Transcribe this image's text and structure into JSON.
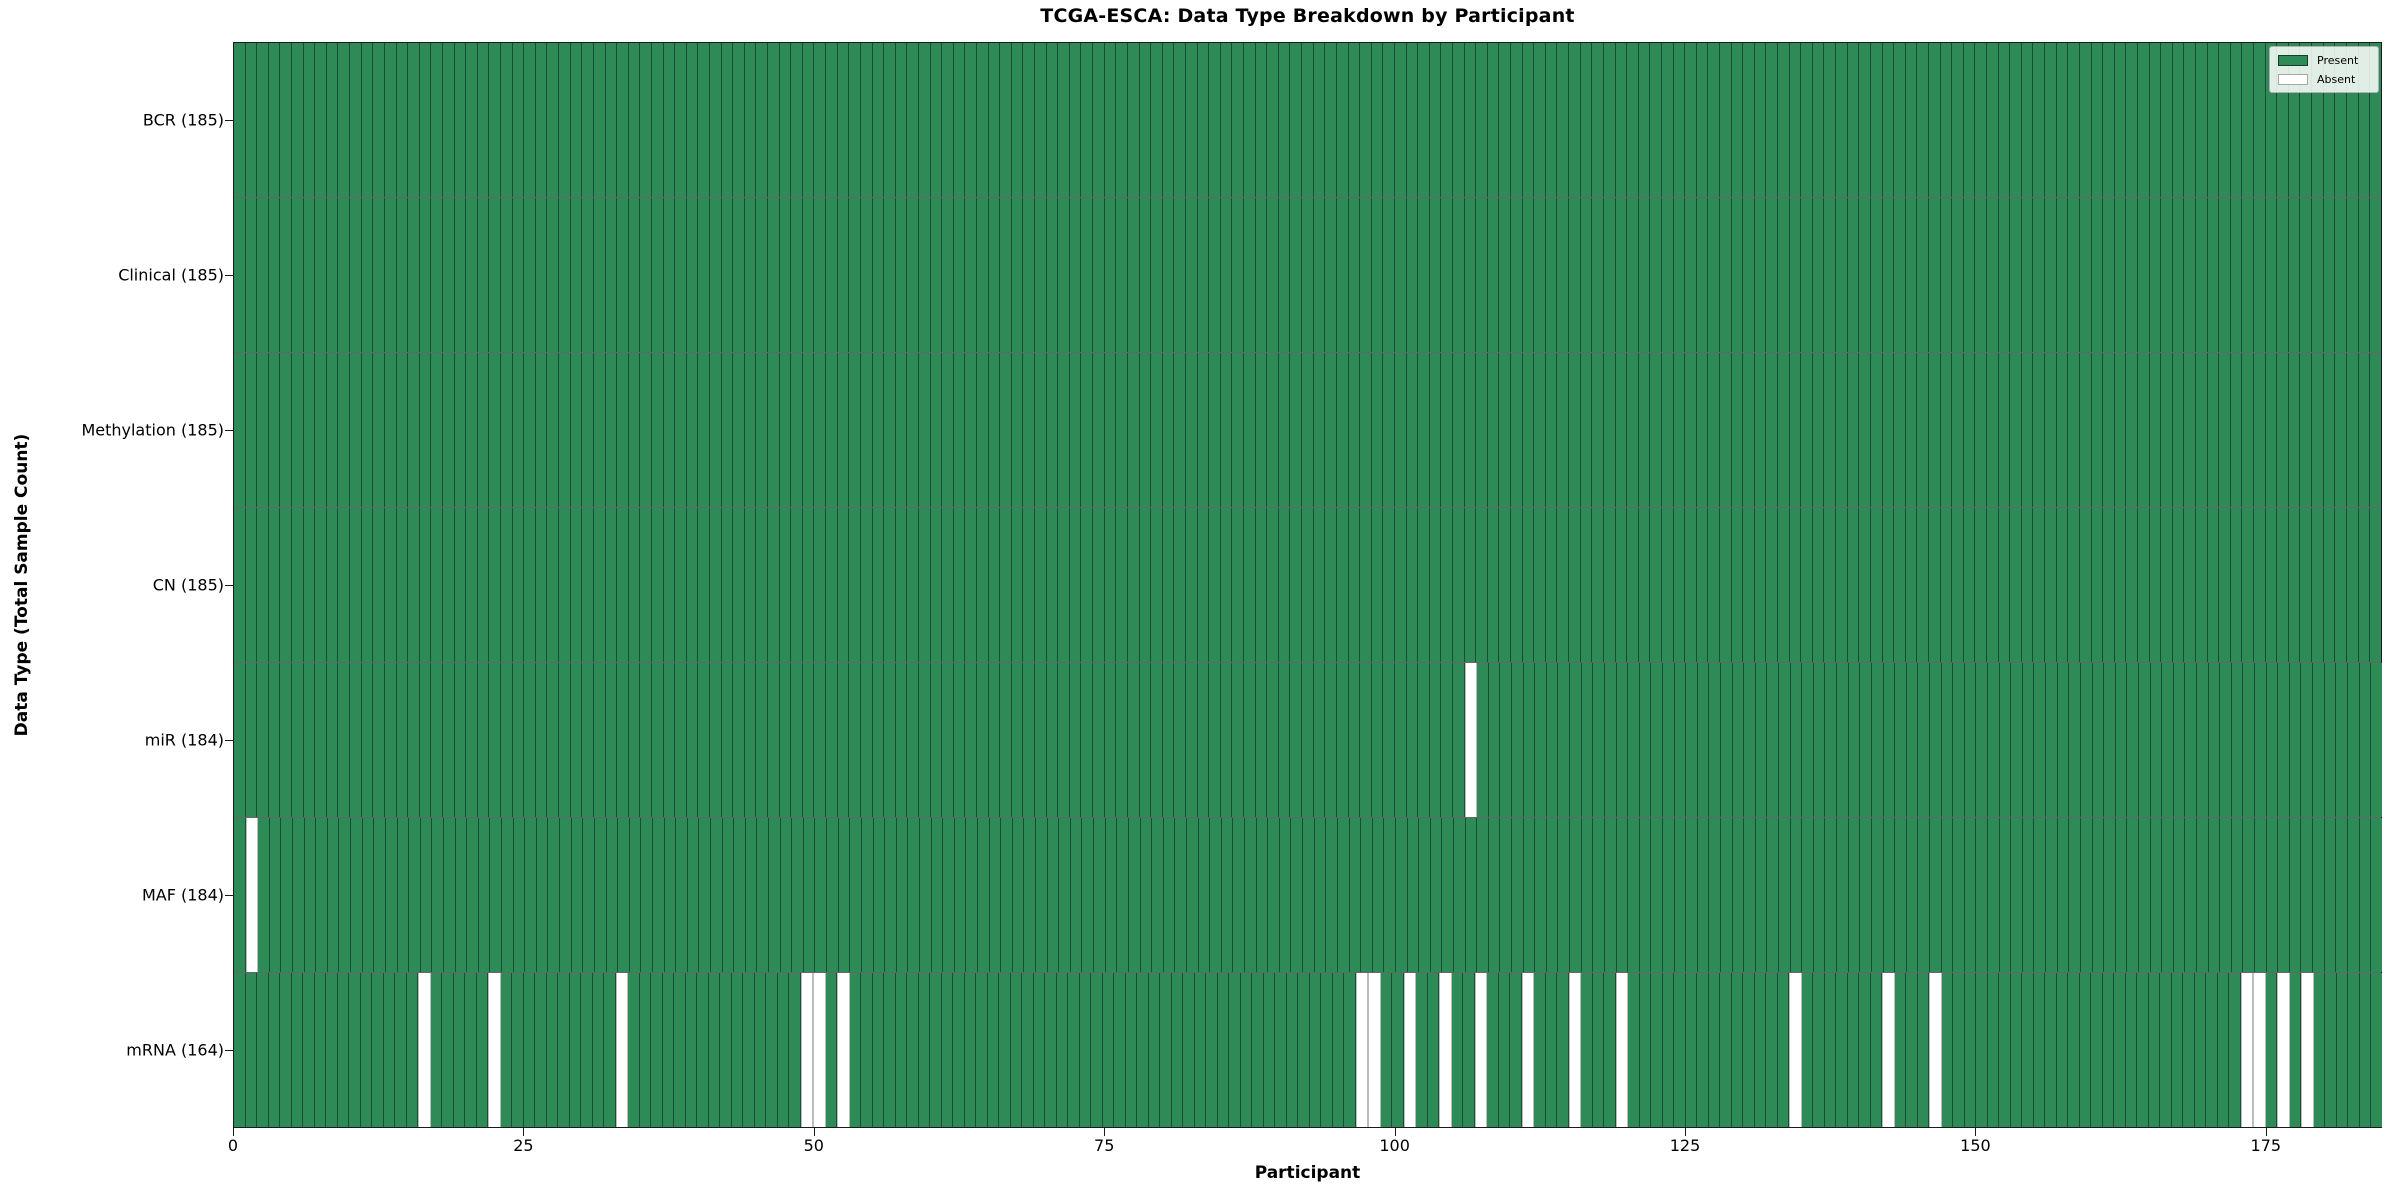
{
  "title": "TCGA-ESCA: Data Type Breakdown by Participant",
  "colors": {
    "present": "#2e8b57",
    "absent": "#ffffff",
    "cell_edge": "rgba(8,30,18,0.55)",
    "absent_edge": "#bdbdbd",
    "spine": "#1a1a1a",
    "legend_border": "#b0b0b0"
  },
  "chart_data": {
    "type": "heatmap",
    "title": "TCGA-ESCA: Data Type Breakdown by Participant",
    "xlabel": "Participant",
    "ylabel": "Data Type (Total Sample Count)",
    "x_range": [
      0,
      185
    ],
    "n_participants": 185,
    "x_ticks": [
      0,
      25,
      50,
      75,
      100,
      125,
      150,
      175
    ],
    "legend_position": "upper right",
    "legend": {
      "present": "Present",
      "absent": "Absent"
    },
    "cell_states": [
      "present",
      "absent"
    ],
    "rows": [
      {
        "label": "BCR (185)",
        "data_type": "BCR",
        "total": 185,
        "absent_participants": []
      },
      {
        "label": "Clinical (185)",
        "data_type": "Clinical",
        "total": 185,
        "absent_participants": []
      },
      {
        "label": "Methylation (185)",
        "data_type": "Methylation",
        "total": 185,
        "absent_participants": []
      },
      {
        "label": "CN (185)",
        "data_type": "CN",
        "total": 185,
        "absent_participants": []
      },
      {
        "label": "miR (184)",
        "data_type": "miR",
        "total": 184,
        "absent_participants": [
          106
        ]
      },
      {
        "label": "MAF (184)",
        "data_type": "MAF",
        "total": 184,
        "absent_participants": [
          1
        ]
      },
      {
        "label": "mRNA (164)",
        "data_type": "mRNA",
        "total": 164,
        "absent_participants": [
          16,
          22,
          33,
          49,
          50,
          52,
          97,
          98,
          101,
          104,
          107,
          111,
          115,
          119,
          134,
          142,
          146,
          173,
          174,
          176,
          178
        ]
      }
    ]
  }
}
